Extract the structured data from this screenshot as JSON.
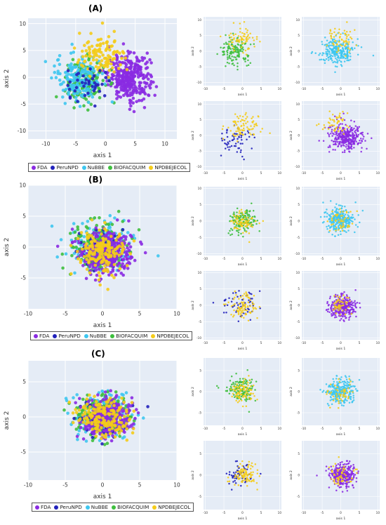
{
  "panel_labels": [
    "(A)",
    "(B)",
    "(C)"
  ],
  "colors": {
    "FDA": "#8a2be2",
    "PeruNPD": "#2222bb",
    "NuBBE": "#3ec6ef",
    "BIOFACQUIM": "#3fbf3f",
    "NPDBEJECOL": "#f4cc1a"
  },
  "legend": [
    "FDA",
    "PeruNPD",
    "NuBBE",
    "BIOFACQUIM",
    "NPDBEJECOL"
  ],
  "chart_data": [
    {
      "id": "A-main",
      "type": "scatter",
      "xlabel": "axis 1",
      "ylabel": "axis 2",
      "xlim": [
        -13,
        12
      ],
      "ylim": [
        -11.5,
        11
      ],
      "xticks": [
        -10,
        -5,
        0,
        5,
        10
      ],
      "yticks": [
        -10,
        -5,
        0,
        5,
        10
      ],
      "series": [
        {
          "name": "FDA",
          "center": [
            4,
            0
          ],
          "spread": [
            3.2,
            3.8
          ],
          "n": 320
        },
        {
          "name": "BIOFACQUIM",
          "center": [
            -3.5,
            -1
          ],
          "spread": [
            3,
            3.8
          ],
          "n": 160
        },
        {
          "name": "NuBBE",
          "center": [
            -4.5,
            0
          ],
          "spread": [
            3.5,
            4
          ],
          "n": 170
        },
        {
          "name": "NPDBEJECOL",
          "center": [
            -0.5,
            4
          ],
          "spread": [
            4,
            3.5
          ],
          "n": 110
        },
        {
          "name": "PeruNPD",
          "center": [
            -3,
            -2
          ],
          "spread": [
            3.5,
            3.5
          ],
          "n": 40
        }
      ]
    },
    {
      "id": "A-biofacquim",
      "type": "scatter",
      "xlabel": "axis 1",
      "ylabel": "axis 2",
      "xlim": [
        -10.5,
        10.5
      ],
      "ylim": [
        -11,
        11
      ],
      "xticks": [
        -10,
        -5,
        0,
        5,
        10
      ],
      "yticks": [
        -10,
        -5,
        0,
        5,
        10
      ],
      "series": [
        {
          "name": "BIOFACQUIM",
          "center": [
            -2,
            0
          ],
          "spread": [
            3.5,
            4
          ],
          "n": 140
        },
        {
          "name": "NPDBEJECOL",
          "center": [
            0,
            4
          ],
          "spread": [
            3.5,
            4
          ],
          "n": 70
        }
      ]
    },
    {
      "id": "A-nubbe",
      "type": "scatter",
      "xlabel": "axis 1",
      "ylabel": "axis 2",
      "xlim": [
        -10.5,
        10.5
      ],
      "ylim": [
        -11,
        11
      ],
      "xticks": [
        -10,
        -5,
        0,
        5,
        10
      ],
      "yticks": [
        -10,
        -5,
        0,
        5,
        10
      ],
      "series": [
        {
          "name": "NuBBE",
          "center": [
            -1,
            0
          ],
          "spread": [
            4,
            4
          ],
          "n": 260
        },
        {
          "name": "NPDBEJECOL",
          "center": [
            0,
            4
          ],
          "spread": [
            3.5,
            3.5
          ],
          "n": 60
        }
      ]
    },
    {
      "id": "A-perunpd",
      "type": "scatter",
      "xlabel": "axis 1",
      "ylabel": "axis 2",
      "xlim": [
        -10.5,
        10.5
      ],
      "ylim": [
        -11,
        11
      ],
      "xticks": [
        -10,
        -5,
        0,
        5,
        10
      ],
      "yticks": [
        -10,
        -5,
        0,
        5,
        10
      ],
      "series": [
        {
          "name": "PeruNPD",
          "center": [
            -2,
            -2
          ],
          "spread": [
            4,
            4
          ],
          "n": 60
        },
        {
          "name": "NPDBEJECOL",
          "center": [
            0,
            3
          ],
          "spread": [
            4,
            4
          ],
          "n": 80
        }
      ]
    },
    {
      "id": "A-fda",
      "type": "scatter",
      "xlabel": "axis 1",
      "ylabel": "axis 2",
      "xlim": [
        -10.5,
        10.5
      ],
      "ylim": [
        -11,
        11
      ],
      "xticks": [
        -10,
        -5,
        0,
        5,
        10
      ],
      "yticks": [
        -10,
        -5,
        0,
        5,
        10
      ],
      "series": [
        {
          "name": "FDA",
          "center": [
            1.5,
            -0.5
          ],
          "spread": [
            4,
            4
          ],
          "n": 330
        },
        {
          "name": "NPDBEJECOL",
          "center": [
            -1,
            4
          ],
          "spread": [
            3.5,
            3.5
          ],
          "n": 50
        }
      ]
    },
    {
      "id": "B-main",
      "type": "scatter",
      "xlabel": "axis 1",
      "ylabel": "axis 2",
      "xlim": [
        -10,
        10
      ],
      "ylim": [
        -10,
        10
      ],
      "xticks": [
        -10,
        -5,
        0,
        5,
        10
      ],
      "yticks": [
        -5,
        0,
        5,
        10
      ],
      "series": [
        {
          "name": "NuBBE",
          "center": [
            0,
            0
          ],
          "spread": [
            3.5,
            3.6
          ],
          "n": 230
        },
        {
          "name": "BIOFACQUIM",
          "center": [
            -0.5,
            0
          ],
          "spread": [
            3.3,
            3.4
          ],
          "n": 200
        },
        {
          "name": "PeruNPD",
          "center": [
            0,
            0
          ],
          "spread": [
            3.5,
            3.5
          ],
          "n": 50
        },
        {
          "name": "FDA",
          "center": [
            0.5,
            -1
          ],
          "spread": [
            3.2,
            3.2
          ],
          "n": 330
        },
        {
          "name": "NPDBEJECOL",
          "center": [
            0,
            -0.5
          ],
          "spread": [
            3,
            3
          ],
          "n": 180
        }
      ]
    },
    {
      "id": "B-biofacquim",
      "type": "scatter",
      "xlabel": "axis 1",
      "ylabel": "axis 2",
      "xlim": [
        -10.5,
        10.5
      ],
      "ylim": [
        -10.5,
        10.5
      ],
      "xticks": [
        -10,
        -5,
        0,
        5,
        10
      ],
      "yticks": [
        -10,
        -5,
        0,
        5,
        10
      ],
      "series": [
        {
          "name": "BIOFACQUIM",
          "center": [
            0,
            0
          ],
          "spread": [
            3.5,
            3.5
          ],
          "n": 140
        },
        {
          "name": "NPDBEJECOL",
          "center": [
            0,
            0
          ],
          "spread": [
            3,
            3
          ],
          "n": 70
        }
      ]
    },
    {
      "id": "B-nubbe",
      "type": "scatter",
      "xlabel": "axis 1",
      "ylabel": "axis 2",
      "xlim": [
        -10.5,
        10.5
      ],
      "ylim": [
        -10.5,
        10.5
      ],
      "xticks": [
        -10,
        -5,
        0,
        5,
        10
      ],
      "yticks": [
        -10,
        -5,
        0,
        5,
        10
      ],
      "series": [
        {
          "name": "NuBBE",
          "center": [
            0,
            0
          ],
          "spread": [
            3.8,
            3.5
          ],
          "n": 260
        },
        {
          "name": "NPDBEJECOL",
          "center": [
            0,
            0
          ],
          "spread": [
            3,
            3
          ],
          "n": 50
        }
      ]
    },
    {
      "id": "B-perunpd",
      "type": "scatter",
      "xlabel": "axis 1",
      "ylabel": "axis 2",
      "xlim": [
        -10.5,
        10.5
      ],
      "ylim": [
        -10.5,
        10.5
      ],
      "xticks": [
        -10,
        -5,
        0,
        5,
        10
      ],
      "yticks": [
        -10,
        -5,
        0,
        5,
        10
      ],
      "series": [
        {
          "name": "PeruNPD",
          "center": [
            -1,
            0
          ],
          "spread": [
            3.8,
            3.5
          ],
          "n": 60
        },
        {
          "name": "NPDBEJECOL",
          "center": [
            0.5,
            0
          ],
          "spread": [
            3.5,
            3.5
          ],
          "n": 90
        }
      ]
    },
    {
      "id": "B-fda",
      "type": "scatter",
      "xlabel": "axis 1",
      "ylabel": "axis 2",
      "xlim": [
        -10.5,
        10.5
      ],
      "ylim": [
        -10.5,
        10.5
      ],
      "xticks": [
        -10,
        -5,
        0,
        5,
        10
      ],
      "yticks": [
        -10,
        -5,
        0,
        5,
        10
      ],
      "series": [
        {
          "name": "FDA",
          "center": [
            0.5,
            -0.5
          ],
          "spread": [
            3.2,
            3
          ],
          "n": 330
        },
        {
          "name": "NPDBEJECOL",
          "center": [
            0,
            0
          ],
          "spread": [
            3,
            3
          ],
          "n": 50
        }
      ]
    },
    {
      "id": "C-main",
      "type": "scatter",
      "xlabel": "axis 1",
      "ylabel": "axis 2",
      "xlim": [
        -10,
        10
      ],
      "ylim": [
        -9,
        8
      ],
      "xticks": [
        -10,
        -5,
        0,
        5,
        10
      ],
      "yticks": [
        -5,
        0,
        5
      ],
      "series": [
        {
          "name": "NuBBE",
          "center": [
            0,
            0
          ],
          "spread": [
            3.5,
            2.6
          ],
          "n": 230
        },
        {
          "name": "BIOFACQUIM",
          "center": [
            -0.5,
            0.3
          ],
          "spread": [
            3.2,
            2.5
          ],
          "n": 200
        },
        {
          "name": "PeruNPD",
          "center": [
            0,
            0
          ],
          "spread": [
            3.3,
            2.5
          ],
          "n": 50
        },
        {
          "name": "FDA",
          "center": [
            0.5,
            0
          ],
          "spread": [
            3,
            2.4
          ],
          "n": 320
        },
        {
          "name": "NPDBEJECOL",
          "center": [
            0,
            0
          ],
          "spread": [
            3.3,
            2.4
          ],
          "n": 180
        }
      ]
    },
    {
      "id": "C-biofacquim",
      "type": "scatter",
      "xlabel": "axis 1",
      "ylabel": "axis 2",
      "xlim": [
        -10.5,
        10.5
      ],
      "ylim": [
        -8,
        8
      ],
      "xticks": [
        -10,
        -5,
        0,
        5,
        10
      ],
      "yticks": [
        -5,
        0,
        5
      ],
      "series": [
        {
          "name": "BIOFACQUIM",
          "center": [
            0,
            0.5
          ],
          "spread": [
            3.5,
            2.5
          ],
          "n": 140
        },
        {
          "name": "NPDBEJECOL",
          "center": [
            0,
            0
          ],
          "spread": [
            3,
            2.5
          ],
          "n": 80
        }
      ]
    },
    {
      "id": "C-nubbe",
      "type": "scatter",
      "xlabel": "axis 1",
      "ylabel": "axis 2",
      "xlim": [
        -10.5,
        10.5
      ],
      "ylim": [
        -8,
        8
      ],
      "xticks": [
        -10,
        -5,
        0,
        5,
        10
      ],
      "yticks": [
        -5,
        0,
        5
      ],
      "series": [
        {
          "name": "NuBBE",
          "center": [
            0,
            0
          ],
          "spread": [
            3.8,
            2.6
          ],
          "n": 260
        },
        {
          "name": "NPDBEJECOL",
          "center": [
            0,
            0
          ],
          "spread": [
            3,
            2.5
          ],
          "n": 50
        }
      ]
    },
    {
      "id": "C-perunpd",
      "type": "scatter",
      "xlabel": "axis 1",
      "ylabel": "axis 2",
      "xlim": [
        -10.5,
        10.5
      ],
      "ylim": [
        -8,
        8
      ],
      "xticks": [
        -10,
        -5,
        0,
        5,
        10
      ],
      "yticks": [
        -5,
        0,
        5
      ],
      "series": [
        {
          "name": "PeruNPD",
          "center": [
            -1,
            0
          ],
          "spread": [
            3.5,
            2.5
          ],
          "n": 60
        },
        {
          "name": "NPDBEJECOL",
          "center": [
            0.5,
            0
          ],
          "spread": [
            3.3,
            2.4
          ],
          "n": 100
        }
      ]
    },
    {
      "id": "C-fda",
      "type": "scatter",
      "xlabel": "axis 1",
      "ylabel": "axis 2",
      "xlim": [
        -10.5,
        10.5
      ],
      "ylim": [
        -8,
        8
      ],
      "xticks": [
        -10,
        -5,
        0,
        5,
        10
      ],
      "yticks": [
        -5,
        0,
        5
      ],
      "series": [
        {
          "name": "FDA",
          "center": [
            0.5,
            0
          ],
          "spread": [
            3,
            2.4
          ],
          "n": 330
        },
        {
          "name": "NPDBEJECOL",
          "center": [
            0,
            0
          ],
          "spread": [
            3,
            2.4
          ],
          "n": 60
        }
      ]
    }
  ]
}
